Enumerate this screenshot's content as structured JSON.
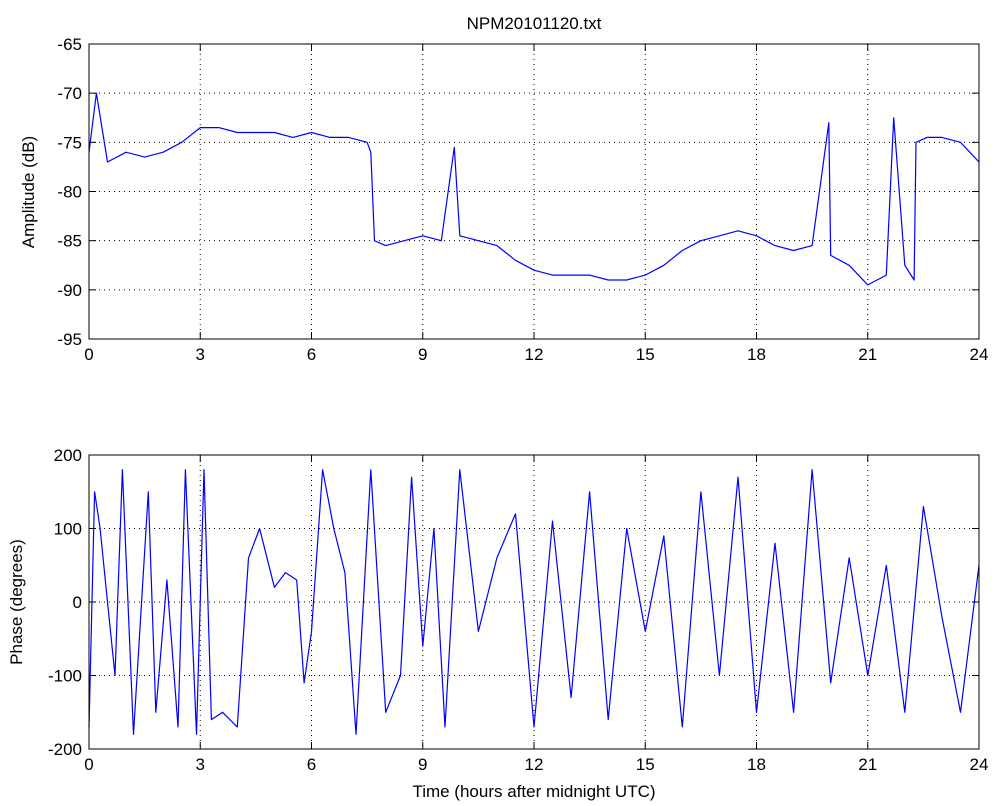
{
  "figure": {
    "title": "NPM20101120.txt"
  },
  "colors": {
    "series": "#0000ff",
    "axes": "#000000",
    "grid": "#000000",
    "background": "#ffffff"
  },
  "chart_data": [
    {
      "type": "line",
      "title": "NPM20101120.txt",
      "xlabel": "",
      "ylabel": "Amplitude (dB)",
      "xlim": [
        0,
        24
      ],
      "ylim": [
        -95,
        -65
      ],
      "xticks": [
        0,
        3,
        6,
        9,
        12,
        15,
        18,
        21,
        24
      ],
      "yticks": [
        -95,
        -90,
        -85,
        -80,
        -75,
        -70,
        -65
      ],
      "grid": true,
      "series": [
        {
          "color": "#0000ff",
          "x": [
            0,
            0.2,
            0.5,
            1.0,
            1.5,
            2.0,
            2.5,
            3.0,
            3.5,
            4.0,
            4.5,
            5.0,
            5.5,
            6.0,
            6.5,
            7.0,
            7.5,
            7.6,
            7.7,
            8.0,
            8.5,
            9.0,
            9.5,
            9.85,
            10.0,
            10.5,
            11.0,
            11.5,
            12.0,
            12.5,
            13.0,
            13.5,
            14.0,
            14.5,
            15.0,
            15.5,
            16.0,
            16.5,
            17.0,
            17.5,
            18.0,
            18.5,
            19.0,
            19.5,
            19.95,
            20.0,
            20.5,
            21.0,
            21.5,
            21.7,
            22.0,
            22.25,
            22.3,
            22.6,
            23.0,
            23.5,
            24.0
          ],
          "y": [
            -76,
            -70,
            -77,
            -76,
            -76.5,
            -76,
            -75,
            -73.5,
            -73.5,
            -74,
            -74,
            -74,
            -74.5,
            -74,
            -74.5,
            -74.5,
            -75,
            -76,
            -85,
            -85.5,
            -85,
            -84.5,
            -85,
            -75.5,
            -84.5,
            -85,
            -85.5,
            -87,
            -88,
            -88.5,
            -88.5,
            -88.5,
            -89,
            -89,
            -88.5,
            -87.5,
            -86,
            -85,
            -84.5,
            -84,
            -84.5,
            -85.5,
            -86,
            -85.5,
            -73,
            -86.5,
            -87.5,
            -89.5,
            -88.5,
            -72.5,
            -87.5,
            -89,
            -75,
            -74.5,
            -74.5,
            -75,
            -77
          ]
        }
      ]
    },
    {
      "type": "line",
      "title": "",
      "xlabel": "Time (hours after midnight UTC)",
      "ylabel": "Phase (degrees)",
      "xlim": [
        0,
        24
      ],
      "ylim": [
        -200,
        200
      ],
      "xticks": [
        0,
        3,
        6,
        9,
        12,
        15,
        18,
        21,
        24
      ],
      "yticks": [
        -200,
        -100,
        0,
        100,
        200
      ],
      "grid": true,
      "series": [
        {
          "color": "#0000ff",
          "x": [
            0,
            0.15,
            0.3,
            0.5,
            0.7,
            0.9,
            1.2,
            1.6,
            1.8,
            2.1,
            2.4,
            2.6,
            2.9,
            3.1,
            3.3,
            3.6,
            4.0,
            4.3,
            4.6,
            5.0,
            5.3,
            5.6,
            5.8,
            6.0,
            6.3,
            6.6,
            6.9,
            7.2,
            7.6,
            8.0,
            8.4,
            8.7,
            9.0,
            9.3,
            9.6,
            10.0,
            10.5,
            11.0,
            11.5,
            12.0,
            12.5,
            13.0,
            13.5,
            14.0,
            14.5,
            15.0,
            15.5,
            16.0,
            16.5,
            17.0,
            17.5,
            18.0,
            18.5,
            19.0,
            19.5,
            20.0,
            20.5,
            21.0,
            21.5,
            22.0,
            22.5,
            23.0,
            23.5,
            24.0
          ],
          "y": [
            -170,
            150,
            100,
            0,
            -100,
            180,
            -180,
            150,
            -150,
            30,
            -170,
            180,
            -180,
            180,
            -160,
            -150,
            -170,
            60,
            100,
            20,
            40,
            30,
            -110,
            -40,
            180,
            100,
            40,
            -180,
            180,
            -150,
            -100,
            170,
            -60,
            100,
            -170,
            180,
            -40,
            60,
            120,
            -170,
            110,
            -130,
            150,
            -160,
            100,
            -40,
            90,
            -170,
            150,
            -100,
            170,
            -150,
            80,
            -150,
            180,
            -110,
            60,
            -100,
            50,
            -150,
            130,
            -20,
            -150,
            50
          ]
        }
      ]
    }
  ]
}
